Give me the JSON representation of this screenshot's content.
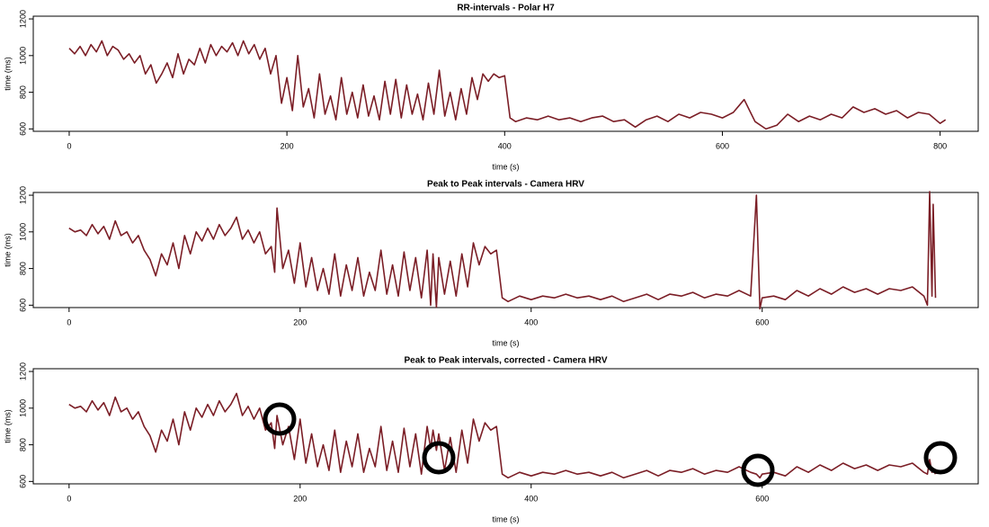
{
  "chart_data": [
    {
      "type": "line",
      "title": "RR-intervals - Polar H7",
      "xlabel": "time (s)",
      "ylabel": "time (ms)",
      "color": "#7b1e26",
      "xlim": [
        -33,
        835
      ],
      "ylim": [
        587,
        1215
      ],
      "xticks": [
        0,
        200,
        400,
        600,
        800
      ],
      "yticks": [
        600,
        800,
        1000,
        1200
      ],
      "x": [
        0,
        5,
        10,
        15,
        20,
        25,
        30,
        35,
        40,
        45,
        50,
        55,
        60,
        65,
        70,
        75,
        80,
        85,
        90,
        95,
        100,
        105,
        110,
        115,
        120,
        125,
        130,
        135,
        140,
        145,
        150,
        155,
        160,
        165,
        170,
        175,
        180,
        185,
        190,
        195,
        200,
        205,
        210,
        215,
        220,
        225,
        230,
        235,
        240,
        245,
        250,
        255,
        260,
        265,
        270,
        275,
        280,
        285,
        290,
        295,
        300,
        305,
        310,
        315,
        320,
        325,
        330,
        335,
        340,
        345,
        350,
        355,
        360,
        365,
        370,
        375,
        380,
        385,
        390,
        395,
        400,
        405,
        410,
        420,
        430,
        440,
        450,
        460,
        470,
        480,
        490,
        500,
        510,
        520,
        530,
        540,
        550,
        560,
        570,
        580,
        590,
        600,
        610,
        620,
        630,
        640,
        650,
        660,
        670,
        680,
        690,
        700,
        710,
        720,
        730,
        740,
        750,
        760,
        770,
        780,
        790,
        800,
        805
      ],
      "values": [
        1040,
        1010,
        1050,
        1000,
        1060,
        1020,
        1080,
        1000,
        1050,
        1030,
        980,
        1010,
        960,
        1000,
        900,
        950,
        850,
        900,
        960,
        880,
        1010,
        900,
        980,
        950,
        1040,
        960,
        1060,
        1000,
        1050,
        1020,
        1070,
        1000,
        1080,
        1010,
        1060,
        980,
        1040,
        900,
        1000,
        740,
        880,
        700,
        1000,
        720,
        820,
        660,
        900,
        680,
        780,
        650,
        880,
        680,
        800,
        660,
        840,
        670,
        780,
        650,
        860,
        680,
        870,
        660,
        840,
        680,
        790,
        650,
        850,
        680,
        920,
        670,
        800,
        650,
        820,
        680,
        880,
        760,
        900,
        860,
        900,
        880,
        890,
        660,
        640,
        660,
        650,
        670,
        650,
        660,
        640,
        660,
        670,
        640,
        650,
        610,
        650,
        670,
        640,
        680,
        660,
        690,
        680,
        660,
        690,
        760,
        640,
        600,
        620,
        680,
        640,
        670,
        650,
        680,
        660,
        720,
        690,
        710,
        680,
        700,
        660,
        690,
        680,
        630,
        650
      ]
    },
    {
      "type": "line",
      "title": "Peak to Peak intervals - Camera HRV",
      "xlabel": "time (s)",
      "ylabel": "time (ms)",
      "color": "#7b1e26",
      "xlim": [
        -31,
        787
      ],
      "ylim": [
        587,
        1215
      ],
      "xticks": [
        0,
        200,
        400,
        600
      ],
      "yticks": [
        600,
        800,
        1000,
        1200
      ],
      "x": [
        0,
        5,
        10,
        15,
        20,
        25,
        30,
        35,
        40,
        45,
        50,
        55,
        60,
        65,
        70,
        75,
        80,
        85,
        90,
        95,
        100,
        105,
        110,
        115,
        120,
        125,
        130,
        135,
        140,
        145,
        150,
        155,
        160,
        165,
        170,
        175,
        178,
        180,
        185,
        190,
        195,
        200,
        205,
        210,
        215,
        220,
        225,
        230,
        235,
        240,
        245,
        250,
        255,
        260,
        265,
        270,
        275,
        280,
        285,
        290,
        295,
        300,
        305,
        310,
        313,
        315,
        318,
        320,
        325,
        330,
        335,
        340,
        345,
        350,
        355,
        360,
        365,
        370,
        375,
        380,
        390,
        400,
        410,
        420,
        430,
        440,
        450,
        460,
        470,
        480,
        490,
        500,
        510,
        520,
        530,
        540,
        550,
        560,
        570,
        580,
        590,
        595,
        598,
        600,
        610,
        620,
        630,
        640,
        650,
        660,
        670,
        680,
        690,
        700,
        710,
        720,
        730,
        740,
        743,
        745,
        747,
        748,
        750
      ],
      "values": [
        1020,
        1000,
        1010,
        980,
        1040,
        990,
        1030,
        960,
        1060,
        980,
        1000,
        940,
        980,
        900,
        850,
        760,
        880,
        820,
        940,
        800,
        980,
        880,
        1000,
        950,
        1020,
        960,
        1040,
        980,
        1020,
        1080,
        960,
        1010,
        940,
        1000,
        880,
        920,
        780,
        1130,
        800,
        900,
        720,
        940,
        700,
        860,
        680,
        800,
        660,
        880,
        650,
        820,
        680,
        860,
        650,
        780,
        680,
        900,
        660,
        820,
        650,
        890,
        680,
        860,
        640,
        900,
        600,
        880,
        590,
        860,
        660,
        840,
        650,
        880,
        700,
        940,
        820,
        920,
        880,
        900,
        640,
        620,
        650,
        630,
        650,
        640,
        660,
        640,
        650,
        630,
        650,
        620,
        640,
        660,
        630,
        660,
        650,
        670,
        640,
        660,
        650,
        680,
        650,
        1200,
        580,
        640,
        650,
        630,
        680,
        650,
        690,
        660,
        700,
        670,
        690,
        660,
        690,
        680,
        700,
        650,
        600,
        1220,
        650,
        1150,
        640
      ]
    },
    {
      "type": "line",
      "title": "Peak to Peak intervals, corrected - Camera HRV",
      "xlabel": "time (s)",
      "ylabel": "time (ms)",
      "color": "#7b1e26",
      "xlim": [
        -31,
        787
      ],
      "ylim": [
        587,
        1215
      ],
      "xticks": [
        0,
        200,
        400,
        600
      ],
      "yticks": [
        600,
        800,
        1000,
        1200
      ],
      "x": [
        0,
        5,
        10,
        15,
        20,
        25,
        30,
        35,
        40,
        45,
        50,
        55,
        60,
        65,
        70,
        75,
        80,
        85,
        90,
        95,
        100,
        105,
        110,
        115,
        120,
        125,
        130,
        135,
        140,
        145,
        150,
        155,
        160,
        165,
        170,
        175,
        178,
        180,
        185,
        190,
        195,
        200,
        205,
        210,
        215,
        220,
        225,
        230,
        235,
        240,
        245,
        250,
        255,
        260,
        265,
        270,
        275,
        280,
        285,
        290,
        295,
        300,
        305,
        310,
        313,
        315,
        318,
        320,
        325,
        330,
        335,
        340,
        345,
        350,
        355,
        360,
        365,
        370,
        375,
        380,
        390,
        400,
        410,
        420,
        430,
        440,
        450,
        460,
        470,
        480,
        490,
        500,
        510,
        520,
        530,
        540,
        550,
        560,
        570,
        580,
        590,
        595,
        598,
        600,
        610,
        620,
        630,
        640,
        650,
        660,
        670,
        680,
        690,
        700,
        710,
        720,
        730,
        740,
        743,
        745,
        747,
        748,
        750
      ],
      "values": [
        1020,
        1000,
        1010,
        980,
        1040,
        990,
        1030,
        960,
        1060,
        980,
        1000,
        940,
        980,
        900,
        850,
        760,
        880,
        820,
        940,
        800,
        980,
        880,
        1000,
        950,
        1020,
        960,
        1040,
        980,
        1020,
        1080,
        960,
        1010,
        940,
        1000,
        880,
        920,
        780,
        960,
        800,
        900,
        720,
        940,
        700,
        860,
        680,
        800,
        660,
        880,
        650,
        820,
        680,
        860,
        650,
        780,
        680,
        900,
        660,
        820,
        650,
        890,
        680,
        860,
        640,
        900,
        780,
        880,
        770,
        860,
        660,
        840,
        650,
        880,
        700,
        940,
        820,
        920,
        880,
        900,
        640,
        620,
        650,
        630,
        650,
        640,
        660,
        640,
        650,
        630,
        650,
        620,
        640,
        660,
        630,
        660,
        650,
        670,
        640,
        660,
        650,
        680,
        650,
        640,
        620,
        640,
        650,
        630,
        680,
        650,
        690,
        660,
        700,
        670,
        690,
        660,
        690,
        680,
        700,
        650,
        640,
        720,
        650,
        660,
        640
      ]
    }
  ]
}
